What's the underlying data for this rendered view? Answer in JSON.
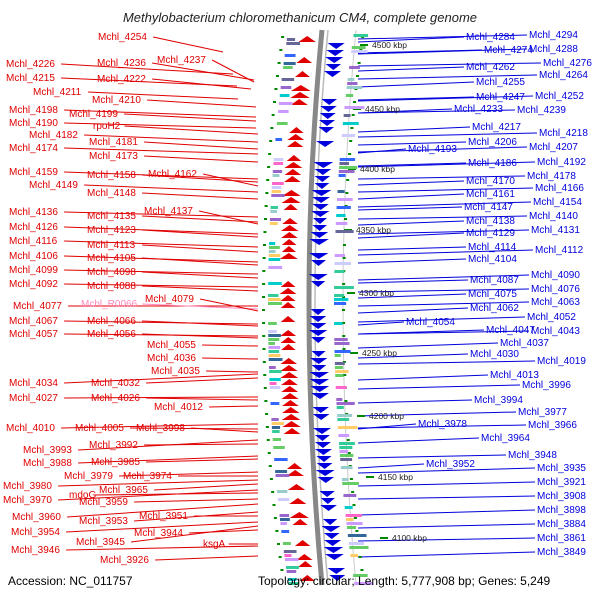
{
  "title": "Methylobacterium chloromethanicum CM4, complete genome",
  "footer": {
    "accession": "Accession: NC_011757",
    "topology": "Topology: circular; Length: 5,777,908 bp; Genes: 5,249"
  },
  "colors": {
    "left_strand": "#e00000",
    "right_strand": "#0000dd",
    "pseudo": "#ff88bb",
    "backbone": "#888888",
    "tick": "#008800"
  },
  "scale_labels": [
    "4500 kbp",
    "4450 kbp",
    "4400 kbp",
    "4350 kbp",
    "4300 kbp",
    "4250 kbp",
    "4200 kbp",
    "4150 kbp",
    "4100 kbp"
  ],
  "left_labels": [
    "Mchl_4254",
    "Mchl_4237",
    "Mchl_4226",
    "Mchl_4236",
    "Mchl_4215",
    "Mchl_4222",
    "Mchl_4211",
    "Mchl_4210",
    "Mchl_4198",
    "Mchl_4199",
    "Mchl_4190",
    "rpoH2",
    "Mchl_4182",
    "Mchl_4181",
    "Mchl_4174",
    "Mchl_4173",
    "Mchl_4159",
    "Mchl_4158",
    "Mchl_4162",
    "Mchl_4149",
    "Mchl_4148",
    "Mchl_4136",
    "Mchl_4135",
    "Mchl_4137",
    "Mchl_4126",
    "Mchl_4123",
    "Mchl_4116",
    "Mchl_4113",
    "Mchl_4106",
    "Mchl_4105",
    "Mchl_4099",
    "Mchl_4098",
    "Mchl_4092",
    "Mchl_4088",
    "Mchl_4077",
    "Mchl_R0066",
    "Mchl_4079",
    "Mchl_4067",
    "Mchl_4066",
    "Mchl_4057",
    "Mchl_4056",
    "Mchl_4055",
    "Mchl_4036",
    "Mchl_4035",
    "Mchl_4034",
    "Mchl_4032",
    "Mchl_4027",
    "Mchl_4026",
    "Mchl_4012",
    "Mchl_4010",
    "Mchl_4005",
    "Mchl_3998",
    "Mchl_3993",
    "Mchl_3992",
    "Mchl_3988",
    "Mchl_3985",
    "Mchl_3979",
    "Mchl_3974",
    "Mchl_3980",
    "Mchl_3965",
    "Mchl_3970",
    "mdoG",
    "Mchl_3959",
    "Mchl_3960",
    "Mchl_3953",
    "Mchl_3951",
    "Mchl_3954",
    "Mchl_3945",
    "Mchl_3944",
    "ksgA",
    "Mchl_3946",
    "Mchl_3926"
  ],
  "right_labels": [
    "Mchl_4284",
    "Mchl_4294",
    "Mchl_4274",
    "Mchl_4288",
    "Mchl_4262",
    "Mchl_4276",
    "Mchl_4255",
    "Mchl_4264",
    "Mchl_4247",
    "Mchl_4252",
    "Mchl_4233",
    "Mchl_4239",
    "Mchl_4217",
    "Mchl_4218",
    "Mchl_4206",
    "Mchl_4207",
    "Mchl_4193",
    "Mchl_4186",
    "Mchl_4192",
    "Mchl_4170",
    "Mchl_4178",
    "Mchl_4161",
    "Mchl_4166",
    "Mchl_4147",
    "Mchl_4154",
    "Mchl_4138",
    "Mchl_4140",
    "Mchl_4129",
    "Mchl_4131",
    "Mchl_4114",
    "Mchl_4112",
    "Mchl_4104",
    "Mchl_4087",
    "Mchl_4090",
    "Mchl_4075",
    "Mchl_4076",
    "Mchl_4062",
    "Mchl_4063",
    "Mchl_4054",
    "Mchl_4052",
    "Mchl_4047",
    "Mchl_4043",
    "Mchl_4037",
    "Mchl_4030",
    "Mchl_4019",
    "Mchl_4013",
    "Mchl_3996",
    "Mchl_3994",
    "Mchl_3978",
    "Mchl_3977",
    "Mchl_3966",
    "Mchl_3964",
    "Mchl_3952",
    "Mchl_3948",
    "Mchl_3935",
    "Mchl_3921",
    "Mchl_3908",
    "Mchl_3898",
    "Mchl_3884",
    "Mchl_3861",
    "Mchl_3849"
  ]
}
